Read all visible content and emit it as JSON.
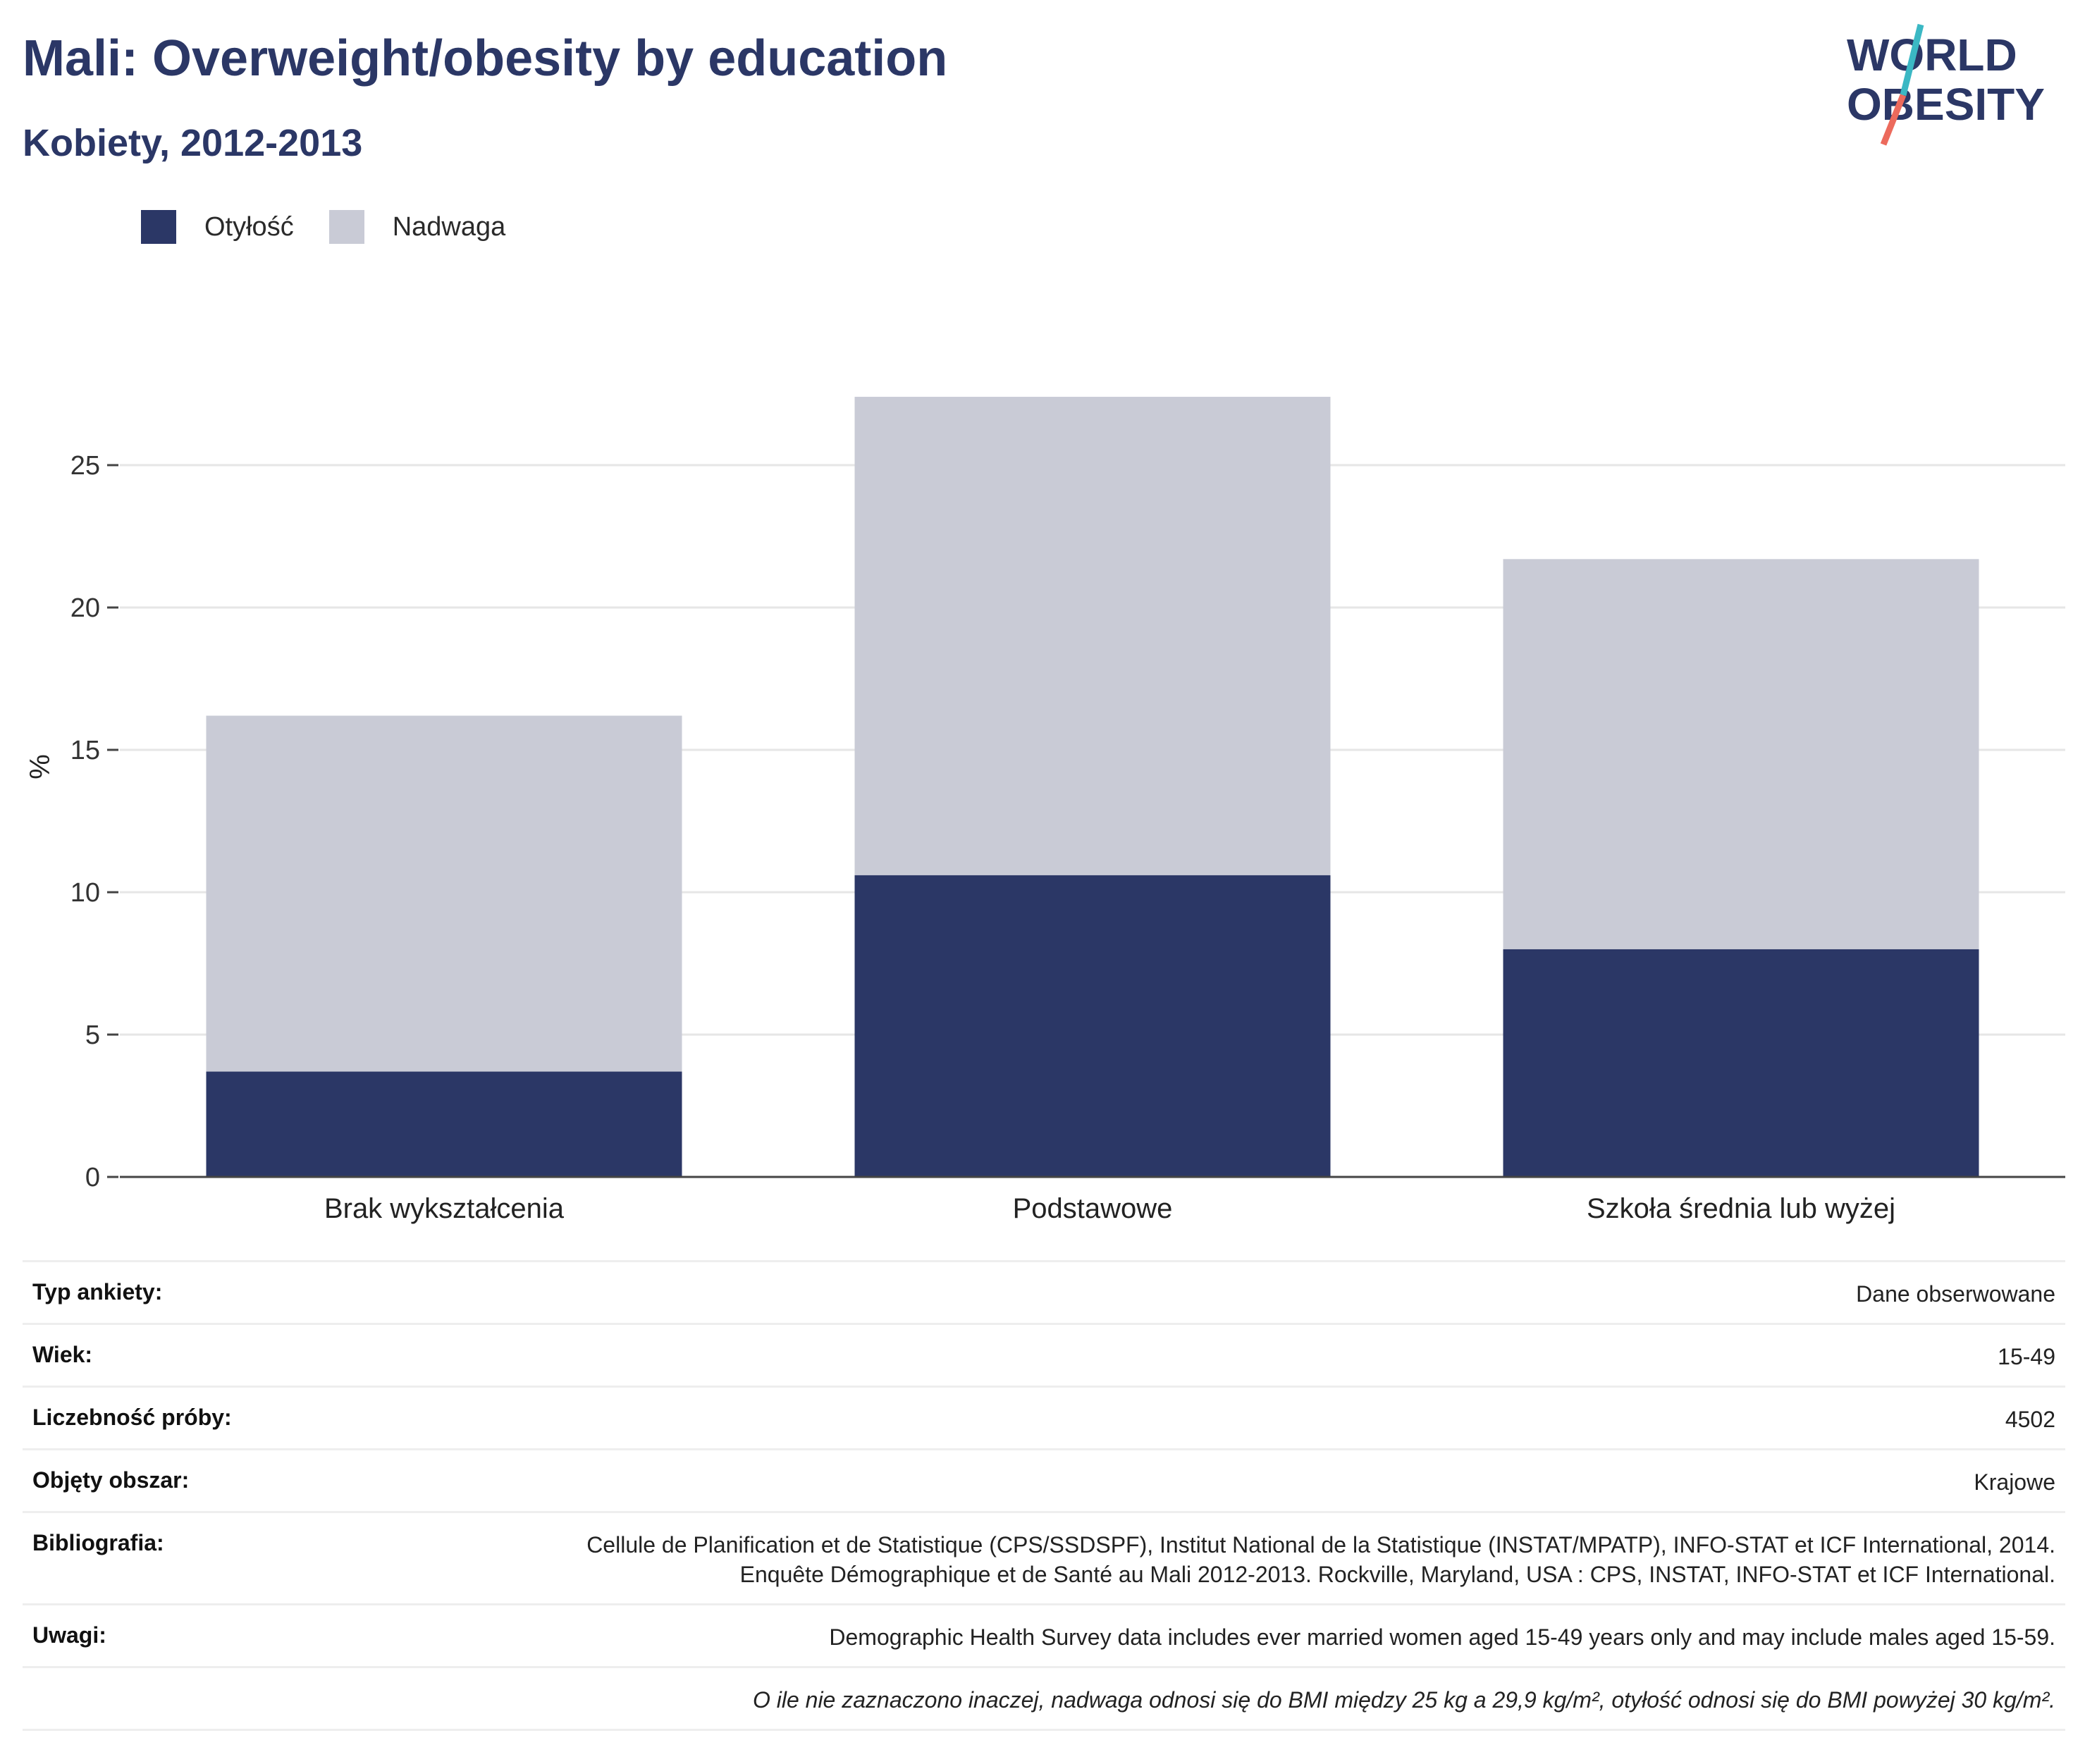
{
  "header": {
    "title": "Mali: Overweight/obesity by education",
    "subtitle": "Kobiety, 2012-2013"
  },
  "logo": {
    "line1": "WORLD",
    "line2": "OBESITY"
  },
  "colors": {
    "obesity": "#2b3766",
    "overweight": "#c9cbd6",
    "title": "#2b3766",
    "logo_teal": "#3bb8c4",
    "logo_coral": "#ec6a5c"
  },
  "chart_data": {
    "type": "bar",
    "stacked": true,
    "categories": [
      "Brak wykształcenia",
      "Podstawowe",
      "Szkoła średnia lub wyżej"
    ],
    "series": [
      {
        "name": "Otyłość",
        "values": [
          3.7,
          10.6,
          8.0
        ]
      },
      {
        "name": "Nadwaga",
        "values": [
          12.5,
          16.8,
          13.7
        ]
      }
    ],
    "ylabel": "%",
    "ylim": [
      0,
      28
    ],
    "yticks": [
      0,
      5,
      10,
      15,
      20,
      25
    ],
    "grid": true,
    "legend_position": "top-left"
  },
  "info_table": [
    {
      "key": "Typ ankiety:",
      "value": "Dane obserwowane"
    },
    {
      "key": "Wiek:",
      "value": "15-49"
    },
    {
      "key": "Liczebność próby:",
      "value": "4502"
    },
    {
      "key": "Objęty obszar:",
      "value": "Krajowe"
    },
    {
      "key": "Bibliografia:",
      "value": "Cellule de Planification et de Statistique (CPS/SSDSPF), Institut National de la Statistique (INSTAT/MPATP), INFO-STAT et ICF International, 2014. Enquête Démographique et de Santé au Mali 2012-2013. Rockville, Maryland, USA : CPS, INSTAT, INFO-STAT et ICF International."
    },
    {
      "key": "Uwagi:",
      "value": "Demographic Health Survey data includes ever married women aged 15-49 years only and may include males aged 15-59."
    }
  ],
  "footnote": "O ile nie zaznaczono inaczej, nadwaga odnosi się do BMI między 25 kg a 29,9 kg/m², otyłość odnosi się do BMI powyżej 30 kg/m²."
}
